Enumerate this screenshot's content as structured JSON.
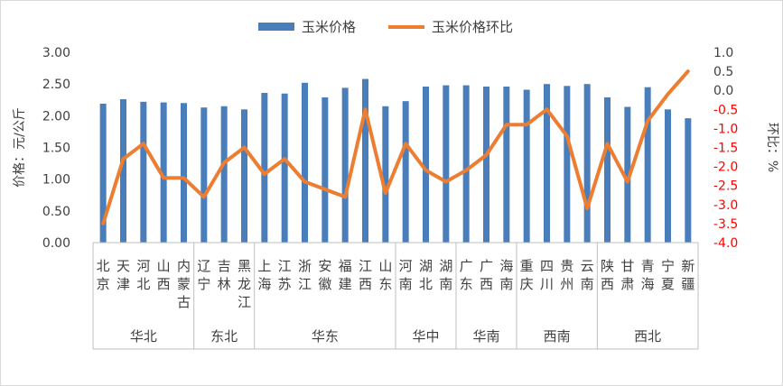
{
  "chart_data": {
    "type": "bar",
    "categories": [
      "北京",
      "天津",
      "河北",
      "山西",
      "内蒙古",
      "辽宁",
      "吉林",
      "黑龙江",
      "上海",
      "江苏",
      "浙江",
      "安徽",
      "福建",
      "江西",
      "山东",
      "河南",
      "湖北",
      "湖南",
      "广东",
      "广西",
      "海南",
      "重庆",
      "四川",
      "贵州",
      "云南",
      "陕西",
      "甘肃",
      "青海",
      "宁夏",
      "新疆"
    ],
    "category_labels": [
      "北京",
      "天津",
      "河北",
      "山西",
      "内蒙古",
      "辽宁",
      "吉林",
      "黑龙江",
      "上海",
      "江苏",
      "浙江",
      "安徽",
      "福建",
      "江西",
      "山东",
      "河南",
      "湖北",
      "湖南",
      "广东",
      "广西",
      "海南",
      "重庆",
      "四川",
      "贵州",
      "云南",
      "陕西",
      "甘肃",
      "青海",
      "宁夏",
      "新疆"
    ],
    "groups": [
      {
        "name": "华北",
        "count": 5
      },
      {
        "name": "东北",
        "count": 3
      },
      {
        "name": "华东",
        "count": 7
      },
      {
        "name": "华中",
        "count": 3
      },
      {
        "name": "华南",
        "count": 3
      },
      {
        "name": "西南",
        "count": 4
      },
      {
        "name": "西北",
        "count": 5
      }
    ],
    "series": [
      {
        "name": "玉米价格",
        "type": "bar",
        "axis": "left",
        "color": "#4a7ebb",
        "values": [
          2.19,
          2.26,
          2.22,
          2.21,
          2.2,
          2.13,
          2.15,
          2.1,
          2.36,
          2.35,
          2.52,
          2.29,
          2.44,
          2.58,
          2.15,
          2.23,
          2.46,
          2.48,
          2.48,
          2.46,
          2.46,
          2.41,
          2.5,
          2.47,
          2.5,
          2.29,
          2.14,
          2.45,
          2.1,
          1.96
        ]
      },
      {
        "name": "玉米价格环比",
        "type": "line",
        "axis": "right",
        "color": "#ed7d31",
        "values": [
          -3.5,
          -1.8,
          -1.4,
          -2.3,
          -2.3,
          -2.8,
          -1.9,
          -1.5,
          -2.2,
          -1.8,
          -2.4,
          -2.6,
          -2.8,
          -0.5,
          -2.7,
          -1.4,
          -2.1,
          -2.4,
          -2.1,
          -1.7,
          -0.9,
          -0.9,
          -0.5,
          -1.2,
          -3.1,
          -1.4,
          -2.4,
          -0.8,
          -0.1,
          0.5
        ]
      }
    ],
    "left_axis": {
      "label": "价格：元/公斤",
      "min": 0,
      "max": 3,
      "ticks": [
        "0.00",
        "0.50",
        "1.00",
        "1.50",
        "2.00",
        "2.50",
        "3.00"
      ]
    },
    "right_axis": {
      "label": "环比：%",
      "min": -4,
      "max": 1,
      "ticks": [
        "1.0",
        "0.5",
        "0.0",
        "-0.5",
        "-1.0",
        "-1.5",
        "-2.0",
        "-2.5",
        "-3.0",
        "-3.5",
        "-4.0"
      ],
      "positive_color": "#404040",
      "negative_color": "#ff0000"
    },
    "legend_position": "top",
    "grid": false
  }
}
